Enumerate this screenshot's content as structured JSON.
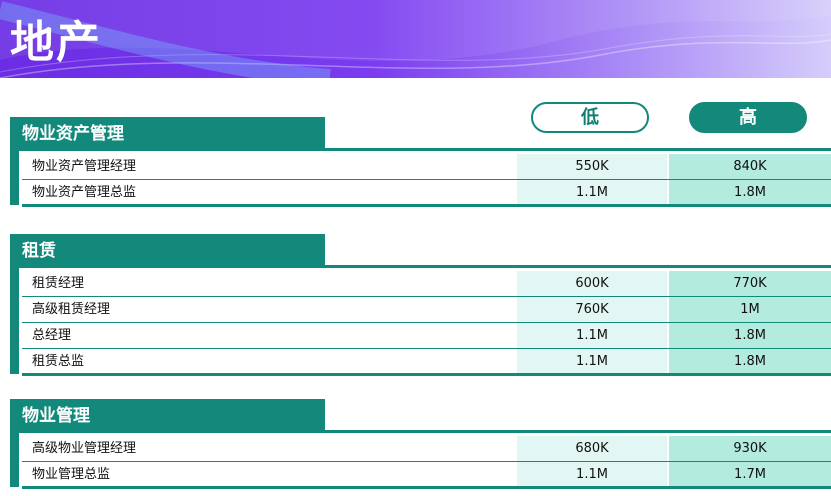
{
  "title": "地产",
  "columns": {
    "low": "低",
    "high": "高"
  },
  "sections": [
    {
      "name": "物业资产管理",
      "rows": [
        {
          "label": "物业资产管理经理",
          "low": "550K",
          "high": "840K"
        },
        {
          "label": "物业资产管理总监",
          "low": "1.1M",
          "high": "1.8M"
        }
      ]
    },
    {
      "name": "租赁",
      "rows": [
        {
          "label": "租赁经理",
          "low": "600K",
          "high": "770K"
        },
        {
          "label": "高级租赁经理",
          "low": "760K",
          "high": "1M"
        },
        {
          "label": "总经理",
          "low": "1.1M",
          "high": "1.8M"
        },
        {
          "label": "租赁总监",
          "low": "1.1M",
          "high": "1.8M"
        }
      ]
    },
    {
      "name": "物业管理",
      "rows": [
        {
          "label": "高级物业管理经理",
          "low": "680K",
          "high": "930K"
        },
        {
          "label": "物业管理总监",
          "low": "1.1M",
          "high": "1.7M"
        }
      ]
    }
  ]
}
